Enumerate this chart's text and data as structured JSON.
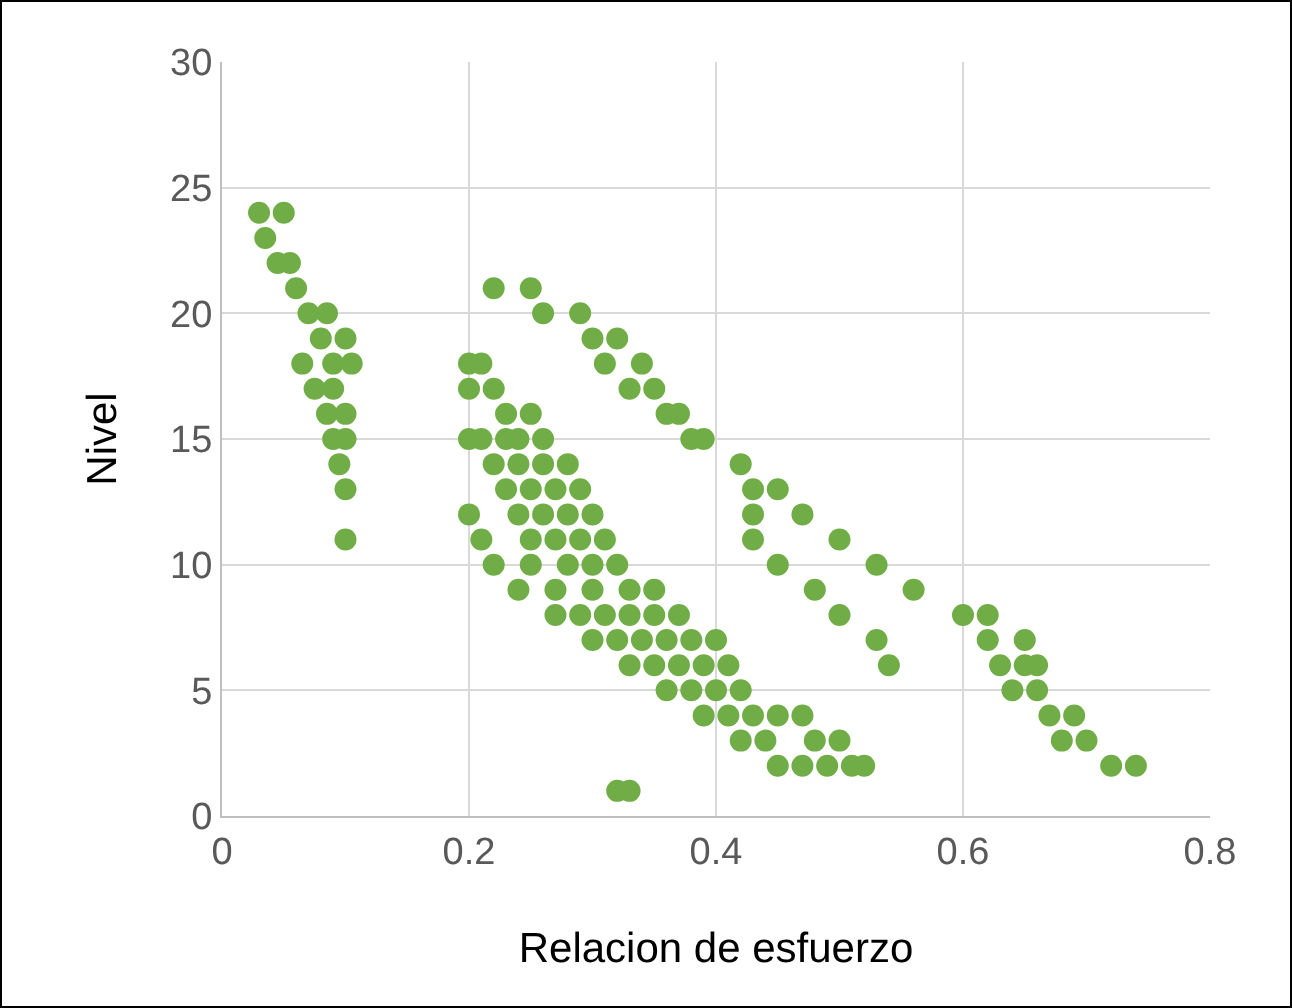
{
  "chart_data": {
    "type": "scatter",
    "xlabel": "Relacion de esfuerzo",
    "ylabel": "Nivel",
    "xlim": [
      0,
      0.8
    ],
    "ylim": [
      0,
      30
    ],
    "xticks": [
      0,
      0.2,
      0.4,
      0.6,
      0.8
    ],
    "yticks": [
      0,
      5,
      10,
      15,
      20,
      25,
      30
    ],
    "grid": true,
    "legend": false,
    "marker": "circle",
    "series": [
      {
        "color": "#70ad47",
        "x": [
          0.03,
          0.05,
          0.035,
          0.045,
          0.055,
          0.06,
          0.07,
          0.085,
          0.08,
          0.1,
          0.065,
          0.09,
          0.105,
          0.075,
          0.09,
          0.085,
          0.1,
          0.09,
          0.1,
          0.095,
          0.1,
          0.1,
          0.22,
          0.25,
          0.26,
          0.29,
          0.3,
          0.32,
          0.31,
          0.34,
          0.33,
          0.35,
          0.36,
          0.37,
          0.38,
          0.39,
          0.42,
          0.43,
          0.45,
          0.43,
          0.43,
          0.47,
          0.45,
          0.5,
          0.48,
          0.53,
          0.5,
          0.53,
          0.54,
          0.56,
          0.6,
          0.62,
          0.62,
          0.63,
          0.65,
          0.64,
          0.65,
          0.66,
          0.66,
          0.67,
          0.69,
          0.68,
          0.7,
          0.72,
          0.74,
          0.2,
          0.21,
          0.2,
          0.22,
          0.23,
          0.25,
          0.21,
          0.23,
          0.24,
          0.26,
          0.2,
          0.22,
          0.24,
          0.26,
          0.28,
          0.23,
          0.25,
          0.27,
          0.29,
          0.24,
          0.26,
          0.28,
          0.3,
          0.2,
          0.25,
          0.27,
          0.29,
          0.31,
          0.21,
          0.22,
          0.25,
          0.28,
          0.3,
          0.32,
          0.24,
          0.27,
          0.3,
          0.33,
          0.35,
          0.27,
          0.29,
          0.31,
          0.33,
          0.35,
          0.37,
          0.3,
          0.32,
          0.34,
          0.36,
          0.38,
          0.4,
          0.33,
          0.35,
          0.37,
          0.39,
          0.41,
          0.36,
          0.38,
          0.4,
          0.42,
          0.39,
          0.41,
          0.43,
          0.45,
          0.47,
          0.42,
          0.44,
          0.48,
          0.5,
          0.45,
          0.47,
          0.49,
          0.51,
          0.52,
          0.32,
          0.33
        ],
        "values": [
          24,
          24,
          23,
          22,
          22,
          21,
          20,
          20,
          19,
          19,
          18,
          18,
          18,
          17,
          17,
          16,
          16,
          15,
          15,
          14,
          13,
          11,
          21,
          21,
          20,
          20,
          19,
          19,
          18,
          18,
          17,
          17,
          16,
          16,
          15,
          15,
          14,
          13,
          13,
          12,
          11,
          12,
          10,
          11,
          9,
          10,
          8,
          7,
          6,
          9,
          8,
          8,
          7,
          6,
          7,
          5,
          6,
          6,
          5,
          4,
          4,
          3,
          3,
          2,
          2,
          18,
          18,
          17,
          17,
          16,
          16,
          15,
          15,
          15,
          15,
          15,
          14,
          14,
          14,
          14,
          13,
          13,
          13,
          13,
          12,
          12,
          12,
          12,
          12,
          11,
          11,
          11,
          11,
          11,
          10,
          10,
          10,
          10,
          10,
          9,
          9,
          9,
          9,
          9,
          8,
          8,
          8,
          8,
          8,
          8,
          7,
          7,
          7,
          7,
          7,
          7,
          6,
          6,
          6,
          6,
          6,
          5,
          5,
          5,
          5,
          4,
          4,
          4,
          4,
          4,
          3,
          3,
          3,
          3,
          2,
          2,
          2,
          2,
          2,
          1,
          1
        ]
      }
    ]
  }
}
